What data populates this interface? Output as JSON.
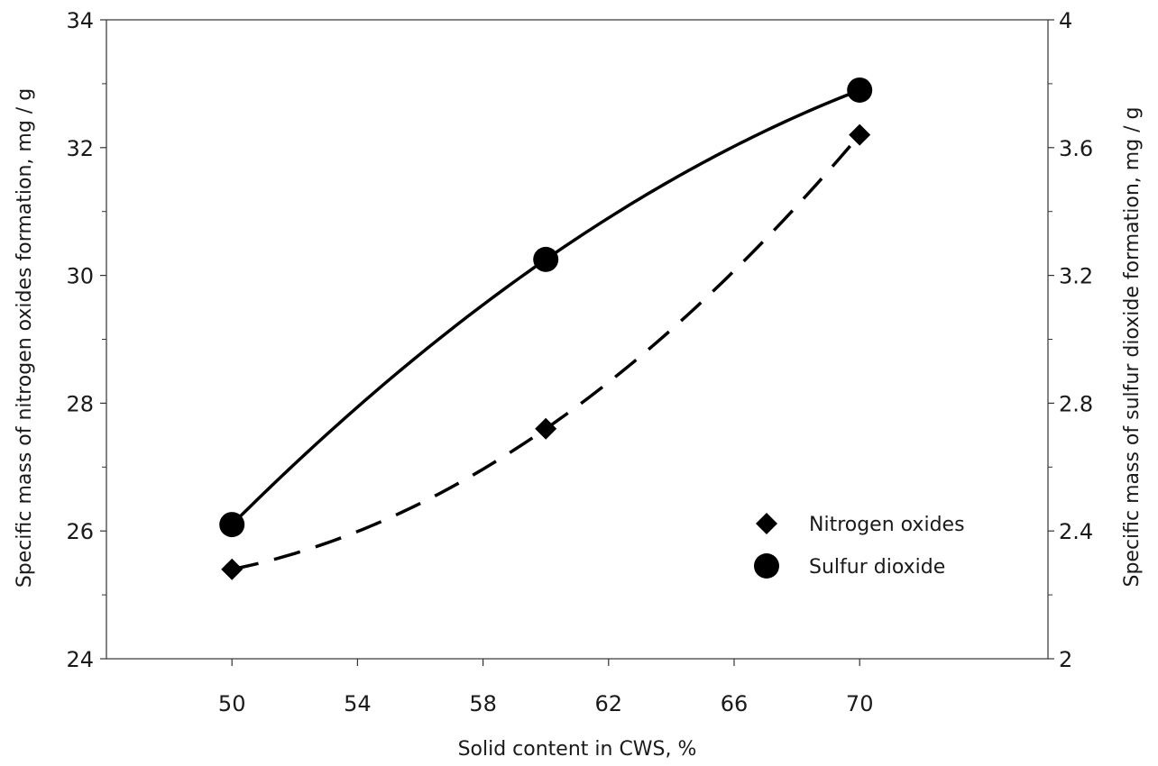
{
  "chart_data": {
    "type": "line",
    "title": "",
    "xlabel": "Solid content in CWS, %",
    "ylabel": "Specific mass of nitrogen oxides formation, mg / g",
    "y2label": "Specific mass of sulfur dioxide formation, mg / g",
    "xlim": [
      46,
      76
    ],
    "xticks": [
      50,
      54,
      58,
      62,
      66,
      70
    ],
    "ylim": [
      24,
      34
    ],
    "yticks": [
      24,
      26,
      28,
      30,
      32,
      34
    ],
    "y2lim": [
      2,
      4
    ],
    "y2ticks": [
      2,
      2.4,
      2.8,
      3.2,
      3.6,
      4
    ],
    "y2tick_labels": [
      "2",
      "2.4",
      "2.8",
      "3.2",
      "3.6",
      "4"
    ],
    "grid": false,
    "legend_position": "lower-right",
    "series": [
      {
        "name": "Nitrogen oxides",
        "axis": "left",
        "marker": "diamond",
        "line_style": "dashed",
        "color": "#000000",
        "x": [
          50,
          60,
          70
        ],
        "y": [
          25.4,
          27.6,
          32.2
        ]
      },
      {
        "name": "Sulfur dioxide",
        "axis": "right",
        "marker": "circle",
        "line_style": "solid",
        "color": "#000000",
        "x": [
          50,
          60,
          70
        ],
        "y": [
          2.42,
          3.25,
          3.78
        ]
      }
    ]
  }
}
